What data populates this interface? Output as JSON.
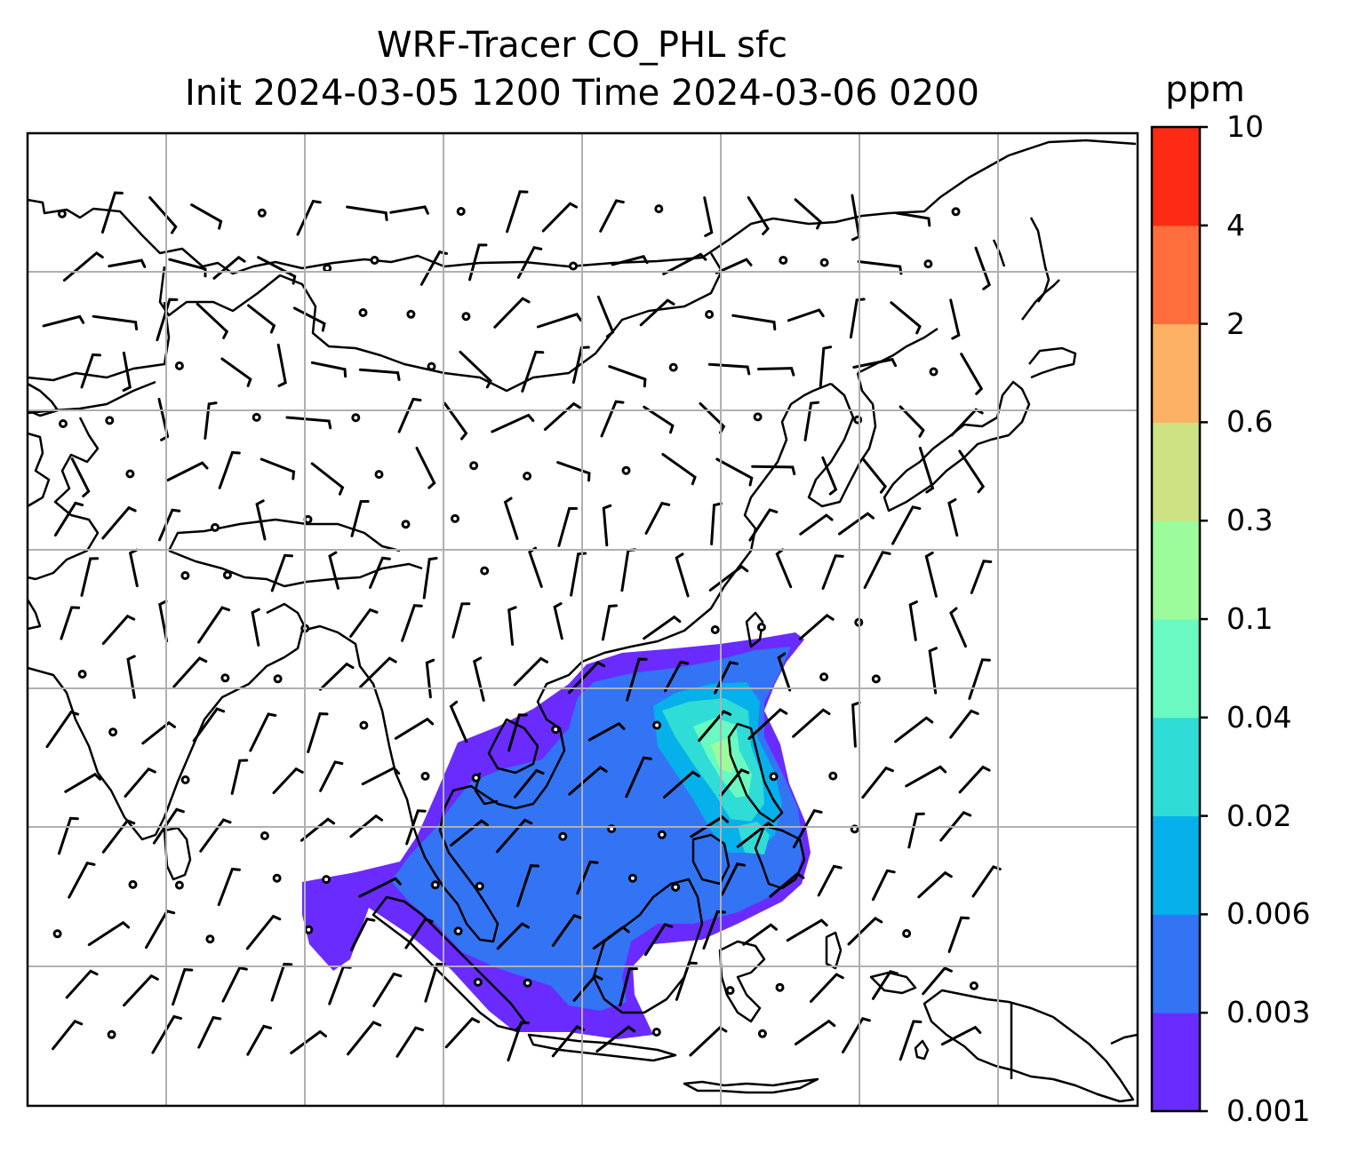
{
  "title_line1": "WRF-Tracer CO_PHL sfc",
  "title_line2": "Init 2024-03-05 1200 Time 2024-03-06 0200",
  "colorbar": {
    "unit": "ppm",
    "levels": [
      "0.001",
      "0.003",
      "0.006",
      "0.02",
      "0.04",
      "0.1",
      "0.3",
      "0.6",
      "2",
      "4",
      "10"
    ],
    "colors": [
      "#6a2bff",
      "#3274f4",
      "#06b0ea",
      "#30dcd6",
      "#6af9c0",
      "#9cfc9c",
      "#cde282",
      "#fcb164",
      "#ff6e3c",
      "#ff2a14"
    ]
  }
}
